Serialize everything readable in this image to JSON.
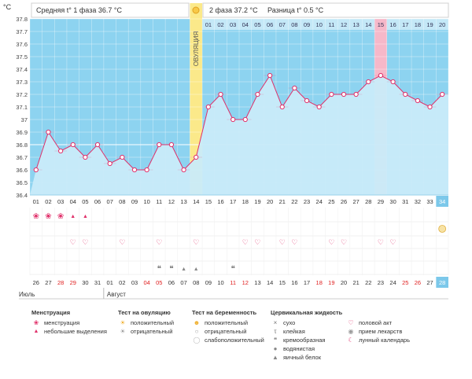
{
  "chart_data": {
    "type": "line",
    "ylabel": "°C",
    "ylim": [
      36.4,
      37.8
    ],
    "y_ticks": [
      "36.4",
      "36.5",
      "36.6",
      "36.7",
      "36.8",
      "36.9",
      "37",
      "37.1",
      "37.2",
      "37.3",
      "37.4",
      "37.5",
      "37.6",
      "37.7",
      "37.8"
    ],
    "coverline": 36.8,
    "phase1_label": "Средняя t° 1 фаза 36.7 °C",
    "phase2_label": "2 фаза 37.2 °C",
    "diff_label": "Разница t° 0.5 °C",
    "ovulation_label": "ОВУЛЯЦИЯ",
    "ovulation_day": 14,
    "highlight_day": 29,
    "highlight_phase2_col": "15",
    "cycle_days": [
      "01",
      "02",
      "03",
      "04",
      "05",
      "06",
      "07",
      "08",
      "09",
      "10",
      "11",
      "12",
      "13",
      "14",
      "15",
      "16",
      "17",
      "18",
      "19",
      "20",
      "21",
      "22",
      "23",
      "24",
      "25",
      "26",
      "27",
      "28",
      "29",
      "30",
      "31",
      "32",
      "33",
      "34"
    ],
    "phase2_days": [
      "01",
      "02",
      "03",
      "04",
      "05",
      "06",
      "07",
      "08",
      "09",
      "10",
      "11",
      "12",
      "13",
      "14",
      "15",
      "16",
      "17",
      "18",
      "19",
      "20"
    ],
    "temperatures": [
      36.6,
      36.9,
      36.75,
      36.8,
      36.7,
      36.8,
      36.65,
      36.7,
      36.6,
      36.6,
      36.8,
      36.8,
      36.6,
      36.7,
      37.1,
      37.2,
      37.0,
      37.0,
      37.2,
      37.35,
      37.1,
      37.25,
      37.15,
      37.1,
      37.2,
      37.2,
      37.2,
      37.3,
      37.35,
      37.3,
      37.2,
      37.15,
      37.1,
      37.2
    ],
    "calendar_dates": [
      "26",
      "27",
      "28",
      "29",
      "30",
      "31",
      "01",
      "02",
      "03",
      "04",
      "05",
      "06",
      "07",
      "08",
      "09",
      "10",
      "11",
      "12",
      "13",
      "14",
      "15",
      "16",
      "17",
      "18",
      "19",
      "20",
      "21",
      "22",
      "23",
      "24",
      "25",
      "26",
      "27",
      "28"
    ],
    "red_date_indices": [
      2,
      3,
      9,
      10,
      16,
      17,
      23,
      24,
      30,
      31
    ],
    "months": [
      "Июль",
      "Август"
    ],
    "markers": {
      "menstruation_days": [
        1,
        2,
        3
      ],
      "light_bleeding_days": [
        4,
        5
      ],
      "intercourse_days": [
        4,
        5,
        8,
        11,
        14,
        18,
        19,
        21,
        22,
        25,
        26,
        29,
        30
      ],
      "calendar_moon_day": 34,
      "creamy_days": [
        11,
        12,
        17
      ],
      "egg_white_days": [
        13,
        14
      ]
    },
    "colors": {
      "plot_bg": "#8dd3f0",
      "area": "#c9ebf9",
      "line": "#e0306a",
      "ovulation_band": "#fbe98a",
      "highlight_band": "#f6b8c9",
      "current_day": "#7cc8ea",
      "red_date": "#e02020"
    }
  },
  "legend": {
    "menstruation": {
      "header": "Менструация",
      "items": [
        "менструация",
        "небольшие выделения"
      ]
    },
    "ovulation_test": {
      "header": "Тест на овуляцию",
      "items": [
        "положительный",
        "отрицательный"
      ]
    },
    "pregnancy_test": {
      "header": "Тест на беременность",
      "items": [
        "положительный",
        "отрицательный",
        "слабоположительный"
      ]
    },
    "cervical_fluid": {
      "header": "Цервикальная жидкость",
      "items": [
        "сухо",
        "клейкая",
        "кремообразная",
        "водянистая",
        "яичный белок"
      ]
    },
    "other": {
      "items": [
        "половой акт",
        "прием лекарств",
        "лунный календарь"
      ]
    }
  }
}
